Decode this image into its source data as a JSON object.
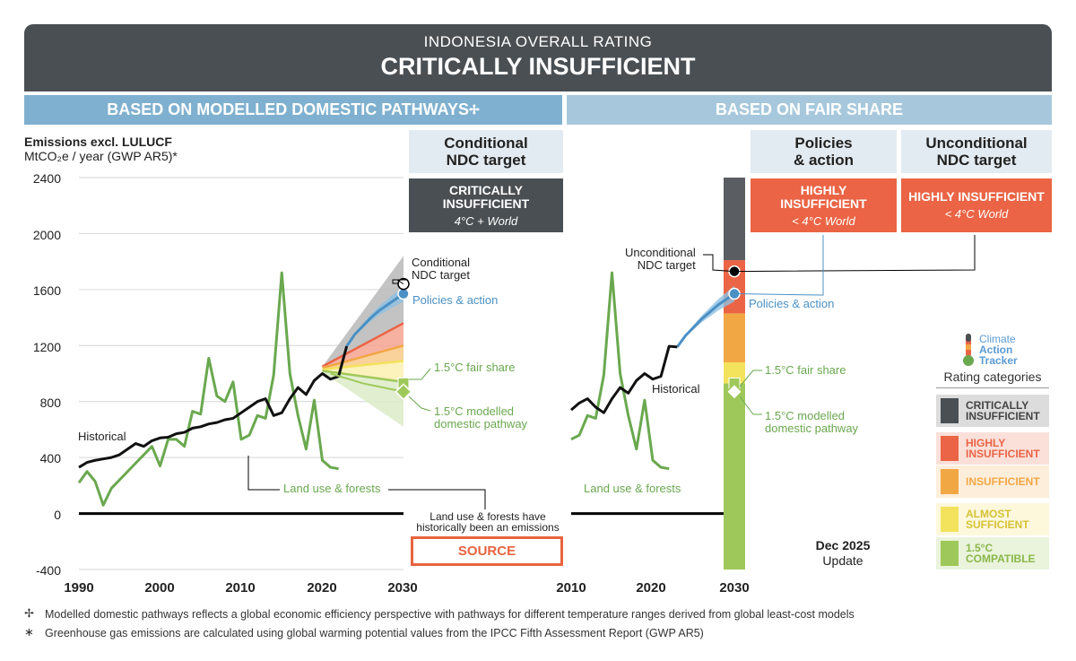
{
  "header": {
    "subtitle": "INDONESIA OVERALL RATING",
    "title": "CRITICALLY INSUFFICIENT"
  },
  "bands": {
    "left": "BASED ON MODELLED DOMESTIC PATHWAYS",
    "left_symbol": "✢",
    "right": "BASED ON FAIR SHARE"
  },
  "boxes": {
    "conditional_ndc": {
      "title": "Conditional\nNDC target",
      "rating": "CRITICALLY\nINSUFFICIENT",
      "sub": "4°C + World",
      "color": "#4a4f53"
    },
    "policies_action": {
      "title": "Policies\n& action",
      "rating": "HIGHLY\nINSUFFICIENT",
      "sub": "< 4°C World",
      "color": "#ea6445"
    },
    "unconditional_ndc": {
      "title": "Unconditional\nNDC target",
      "rating": "HIGHLY INSUFFICIENT",
      "sub": "< 4°C World",
      "color": "#ea6445"
    }
  },
  "axis": {
    "title_bold": "Emissions excl. LULUCF",
    "title_unit": "MtCO₂e / year (GWP AR5)*"
  },
  "labels": {
    "historical": "Historical",
    "land_use": "Land use & forests",
    "conditional_ndc": "Conditional\nNDC target",
    "unconditional_ndc": "Unconditional\nNDC target",
    "policies": "Policies & action",
    "fair_share": "1.5°C fair share",
    "modelled": "1.5°C modelled\ndomestic pathway",
    "source_note": "Land use & forests have\nhistorically been an emissions",
    "source": "SOURCE"
  },
  "categories": {
    "title": "Rating categories",
    "items": [
      {
        "label": "CRITICALLY\nINSUFFICIENT",
        "color": "#4a4f53",
        "bg": "#dcdcdc",
        "text": "#444"
      },
      {
        "label": "HIGHLY\nINSUFFICIENT",
        "color": "#ea6445",
        "bg": "#fbe0da",
        "text": "#ea6445"
      },
      {
        "label": "INSUFFICIENT",
        "color": "#f2a745",
        "bg": "#fdeedb",
        "text": "#f2a745"
      },
      {
        "label": "ALMOST\nSUFFICIENT",
        "color": "#f3e25c",
        "bg": "#fdf8dc",
        "text": "#d6c236"
      },
      {
        "label": "1.5°C\nCOMPATIBLE",
        "color": "#9fc85a",
        "bg": "#eaf3dc",
        "text": "#8ab84a"
      }
    ]
  },
  "logo": {
    "line1": "Climate",
    "line2": "Action",
    "line3": "Tracker"
  },
  "update": {
    "date": "Dec 2025",
    "label": "Update"
  },
  "footnotes": [
    {
      "symbol": "✢",
      "text": "Modelled domestic pathways reflects a global economic efficiency perspective with pathways for different temperature ranges derived from global least-cost models"
    },
    {
      "symbol": "∗",
      "text": "Greenhouse gas emissions are calculated using global warming potential values from the IPCC Fifth Assessment Report (GWP AR5)"
    }
  ],
  "chart_data": [
    {
      "type": "line",
      "title": "BASED ON MODELLED DOMESTIC PATHWAYS",
      "ylabel": "Emissions excl. LULUCF MtCO₂e / year (GWP AR5)*",
      "ylim": [
        -400,
        2400
      ],
      "xlim": [
        1990,
        2030
      ],
      "yticks": [
        2400,
        2000,
        1600,
        1200,
        800,
        400,
        0,
        -400
      ],
      "xticks": [
        1990,
        2000,
        2010,
        2020,
        2030
      ],
      "series": [
        {
          "name": "Historical",
          "color": "#111111",
          "x": [
            1990,
            1991,
            1992,
            1993,
            1994,
            1995,
            1996,
            1997,
            1998,
            1999,
            2000,
            2001,
            2002,
            2003,
            2004,
            2005,
            2006,
            2007,
            2008,
            2009,
            2010,
            2011,
            2012,
            2013,
            2014,
            2015,
            2016,
            2017,
            2018,
            2019,
            2020,
            2021,
            2022,
            2023
          ],
          "y": [
            330,
            365,
            380,
            390,
            400,
            420,
            460,
            500,
            480,
            520,
            540,
            545,
            570,
            580,
            610,
            620,
            640,
            650,
            670,
            680,
            720,
            760,
            800,
            820,
            700,
            720,
            820,
            900,
            850,
            950,
            1000,
            960,
            980,
            1195
          ]
        },
        {
          "name": "Land use & forests",
          "color": "#6aa84f",
          "x": [
            1990,
            1991,
            1992,
            1993,
            1994,
            1995,
            1996,
            1997,
            1998,
            1999,
            2000,
            2001,
            2002,
            2003,
            2004,
            2005,
            2006,
            2007,
            2008,
            2009,
            2010,
            2011,
            2012,
            2013,
            2014,
            2015,
            2016,
            2017,
            2018,
            2019,
            2020,
            2021,
            2022
          ],
          "y": [
            220,
            300,
            230,
            60,
            180,
            240,
            300,
            360,
            420,
            480,
            340,
            530,
            530,
            480,
            730,
            710,
            1110,
            840,
            800,
            940,
            530,
            560,
            700,
            680,
            990,
            1720,
            1000,
            700,
            460,
            810,
            380,
            330,
            320
          ]
        },
        {
          "name": "Policies & action",
          "color": "#4a90c4",
          "x": [
            2023,
            2024,
            2025,
            2026,
            2027,
            2028,
            2029,
            2030
          ],
          "y": [
            1195,
            1280,
            1340,
            1400,
            1450,
            1490,
            1530,
            1570
          ]
        },
        {
          "name": "Conditional NDC target",
          "color": "#000000",
          "x": [
            2030
          ],
          "y": [
            1640
          ]
        },
        {
          "name": "1.5°C fair share",
          "color": "#9fc85a",
          "x": [
            2030
          ],
          "y": [
            930
          ]
        },
        {
          "name": "1.5°C modelled domestic pathway",
          "color": "#9fc85a",
          "x": [
            2021,
            2025,
            2030
          ],
          "y": [
            1000,
            930,
            870
          ]
        }
      ],
      "bands": [
        {
          "category": "CRITICALLY INSUFFICIENT",
          "color": "#b9b9b9",
          "x": [
            2020,
            2030
          ],
          "y_low": [
            1050,
            1360
          ],
          "y_high": [
            1050,
            1840
          ]
        },
        {
          "category": "HIGHLY INSUFFICIENT",
          "color": "#f4a38f",
          "x": [
            2020,
            2030
          ],
          "y_low": [
            1040,
            1200
          ],
          "y_high": [
            1050,
            1360
          ]
        },
        {
          "category": "INSUFFICIENT",
          "color": "#f8c98a",
          "x": [
            2020,
            2030
          ],
          "y_low": [
            1030,
            1090
          ],
          "y_high": [
            1040,
            1200
          ]
        },
        {
          "category": "ALMOST SUFFICIENT",
          "color": "#fbf0b0",
          "x": [
            2020,
            2030
          ],
          "y_low": [
            1020,
            940
          ],
          "y_high": [
            1030,
            1090
          ]
        },
        {
          "category": "1.5°C COMPATIBLE",
          "color": "#dcebc8",
          "x": [
            2020,
            2030
          ],
          "y_low": [
            1010,
            620
          ],
          "y_high": [
            1020,
            940
          ]
        }
      ]
    },
    {
      "type": "line",
      "title": "BASED ON FAIR SHARE",
      "ylim": [
        -400,
        2400
      ],
      "xlim": [
        2010,
        2030
      ],
      "xticks": [
        2010,
        2020,
        2030
      ],
      "series": [
        {
          "name": "Historical",
          "color": "#111111",
          "x": [
            2010,
            2011,
            2012,
            2013,
            2014,
            2015,
            2016,
            2017,
            2018,
            2019,
            2020,
            2021,
            2022,
            2023
          ],
          "y": [
            740,
            790,
            820,
            760,
            720,
            820,
            900,
            860,
            950,
            1000,
            960,
            980,
            1195,
            1190
          ]
        },
        {
          "name": "Land use & forests",
          "color": "#6aa84f",
          "x": [
            2010,
            2011,
            2012,
            2013,
            2014,
            2015,
            2016,
            2017,
            2018,
            2019,
            2020,
            2021,
            2022
          ],
          "y": [
            530,
            560,
            700,
            680,
            990,
            1720,
            1000,
            700,
            460,
            810,
            380,
            330,
            320
          ]
        },
        {
          "name": "Policies & action",
          "color": "#4a90c4",
          "x": [
            2023,
            2024,
            2025,
            2026,
            2027,
            2028,
            2029,
            2030
          ],
          "y": [
            1190,
            1270,
            1330,
            1390,
            1440,
            1490,
            1530,
            1570
          ]
        },
        {
          "name": "Unconditional NDC target",
          "color": "#000000",
          "x": [
            2030
          ],
          "y": [
            1730
          ]
        },
        {
          "name": "1.5°C fair share",
          "color": "#9fc85a",
          "x": [
            2030
          ],
          "y": [
            930
          ]
        },
        {
          "name": "1.5°C modelled domestic pathway",
          "color": "#9fc85a",
          "x": [
            2030
          ],
          "y": [
            870
          ]
        }
      ],
      "bar_2030": [
        {
          "category": "1.5°C COMPATIBLE",
          "color": "#9fc85a",
          "from": -400,
          "to": 930
        },
        {
          "category": "ALMOST SUFFICIENT",
          "color": "#f3e25c",
          "from": 930,
          "to": 1080
        },
        {
          "category": "INSUFFICIENT",
          "color": "#f2a745",
          "from": 1080,
          "to": 1430
        },
        {
          "category": "HIGHLY INSUFFICIENT",
          "color": "#ea6445",
          "from": 1430,
          "to": 1810
        },
        {
          "category": "CRITICALLY INSUFFICIENT",
          "color": "#5a5e62",
          "from": 1810,
          "to": 2400
        }
      ]
    }
  ]
}
